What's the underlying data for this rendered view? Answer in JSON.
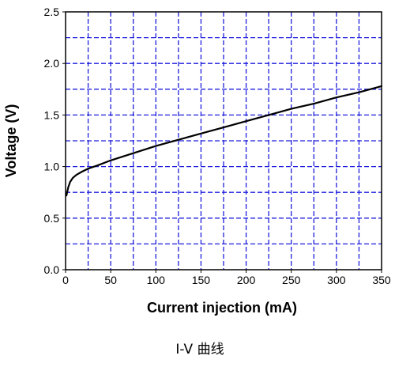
{
  "chart_data": {
    "type": "line",
    "title": "",
    "xlabel": "Current injection (mA)",
    "ylabel": "Voltage (V)",
    "xlim": [
      0,
      350
    ],
    "ylim": [
      0,
      2.5
    ],
    "x_ticks": [
      "0",
      "50",
      "100",
      "150",
      "200",
      "250",
      "300",
      "350"
    ],
    "y_ticks": [
      "0.0",
      "0.5",
      "1.0",
      "1.5",
      "2.0",
      "2.5"
    ],
    "x_grid_step": 25,
    "y_grid_step": 0.25,
    "grid": true,
    "series": [
      {
        "x": [
          1,
          3,
          5,
          8,
          12,
          18,
          25,
          35,
          50,
          75,
          100,
          125,
          150,
          175,
          200,
          225,
          250,
          275,
          300,
          325,
          350
        ],
        "y": [
          0.72,
          0.8,
          0.85,
          0.89,
          0.92,
          0.95,
          0.98,
          1.01,
          1.06,
          1.13,
          1.2,
          1.26,
          1.32,
          1.38,
          1.44,
          1.5,
          1.56,
          1.61,
          1.67,
          1.72,
          1.78
        ]
      }
    ],
    "colors": {
      "curve": "#000000",
      "grid": "#1f1fdc",
      "frame": "#000000"
    }
  },
  "caption": "I-V 曲线"
}
